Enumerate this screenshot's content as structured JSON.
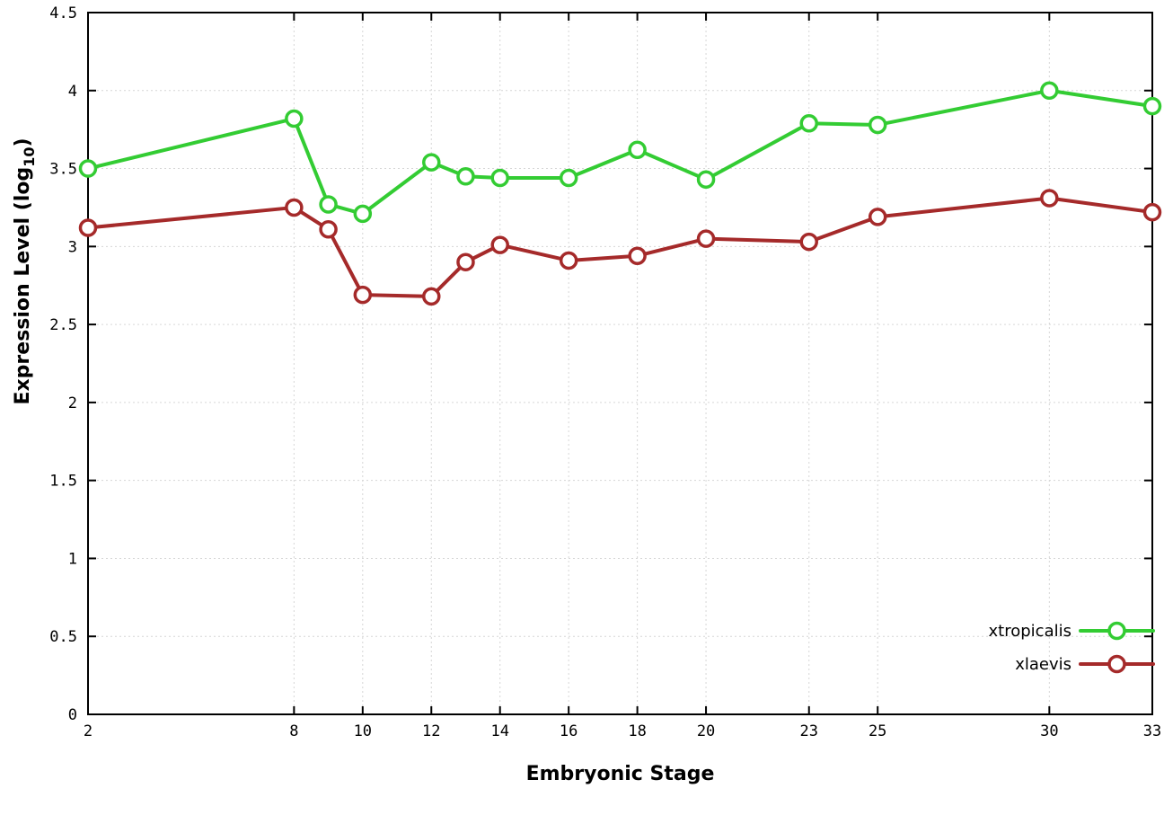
{
  "chart_data": {
    "type": "line",
    "title": "",
    "xlabel": "Embryonic Stage",
    "ylabel": "Expression Level (log10)",
    "ylabel_parts": {
      "main": "Expression Level (log",
      "sub": "10",
      "close": ")"
    },
    "xlim": [
      2,
      33
    ],
    "ylim": [
      0,
      4.5
    ],
    "xticks": [
      2,
      8,
      10,
      12,
      14,
      16,
      18,
      20,
      23,
      25,
      30,
      33
    ],
    "yticks": [
      0,
      0.5,
      1,
      1.5,
      2,
      2.5,
      3,
      3.5,
      4,
      4.5
    ],
    "grid": true,
    "legend_position": "bottom-right",
    "marker_style": "open-circle",
    "x": [
      2,
      8,
      9,
      10,
      12,
      13,
      14,
      16,
      18,
      20,
      23,
      25,
      30,
      33
    ],
    "series": [
      {
        "name": "xtropicalis",
        "color": "#33cc33",
        "values": [
          3.5,
          3.82,
          3.27,
          3.21,
          3.54,
          3.45,
          3.44,
          3.44,
          3.62,
          3.43,
          3.79,
          3.78,
          4.0,
          3.9
        ]
      },
      {
        "name": "xlaevis",
        "color": "#a52a2a",
        "values": [
          3.12,
          3.25,
          3.11,
          2.69,
          2.68,
          2.9,
          3.01,
          2.91,
          2.94,
          3.05,
          3.03,
          3.19,
          3.31,
          3.22
        ]
      }
    ]
  }
}
